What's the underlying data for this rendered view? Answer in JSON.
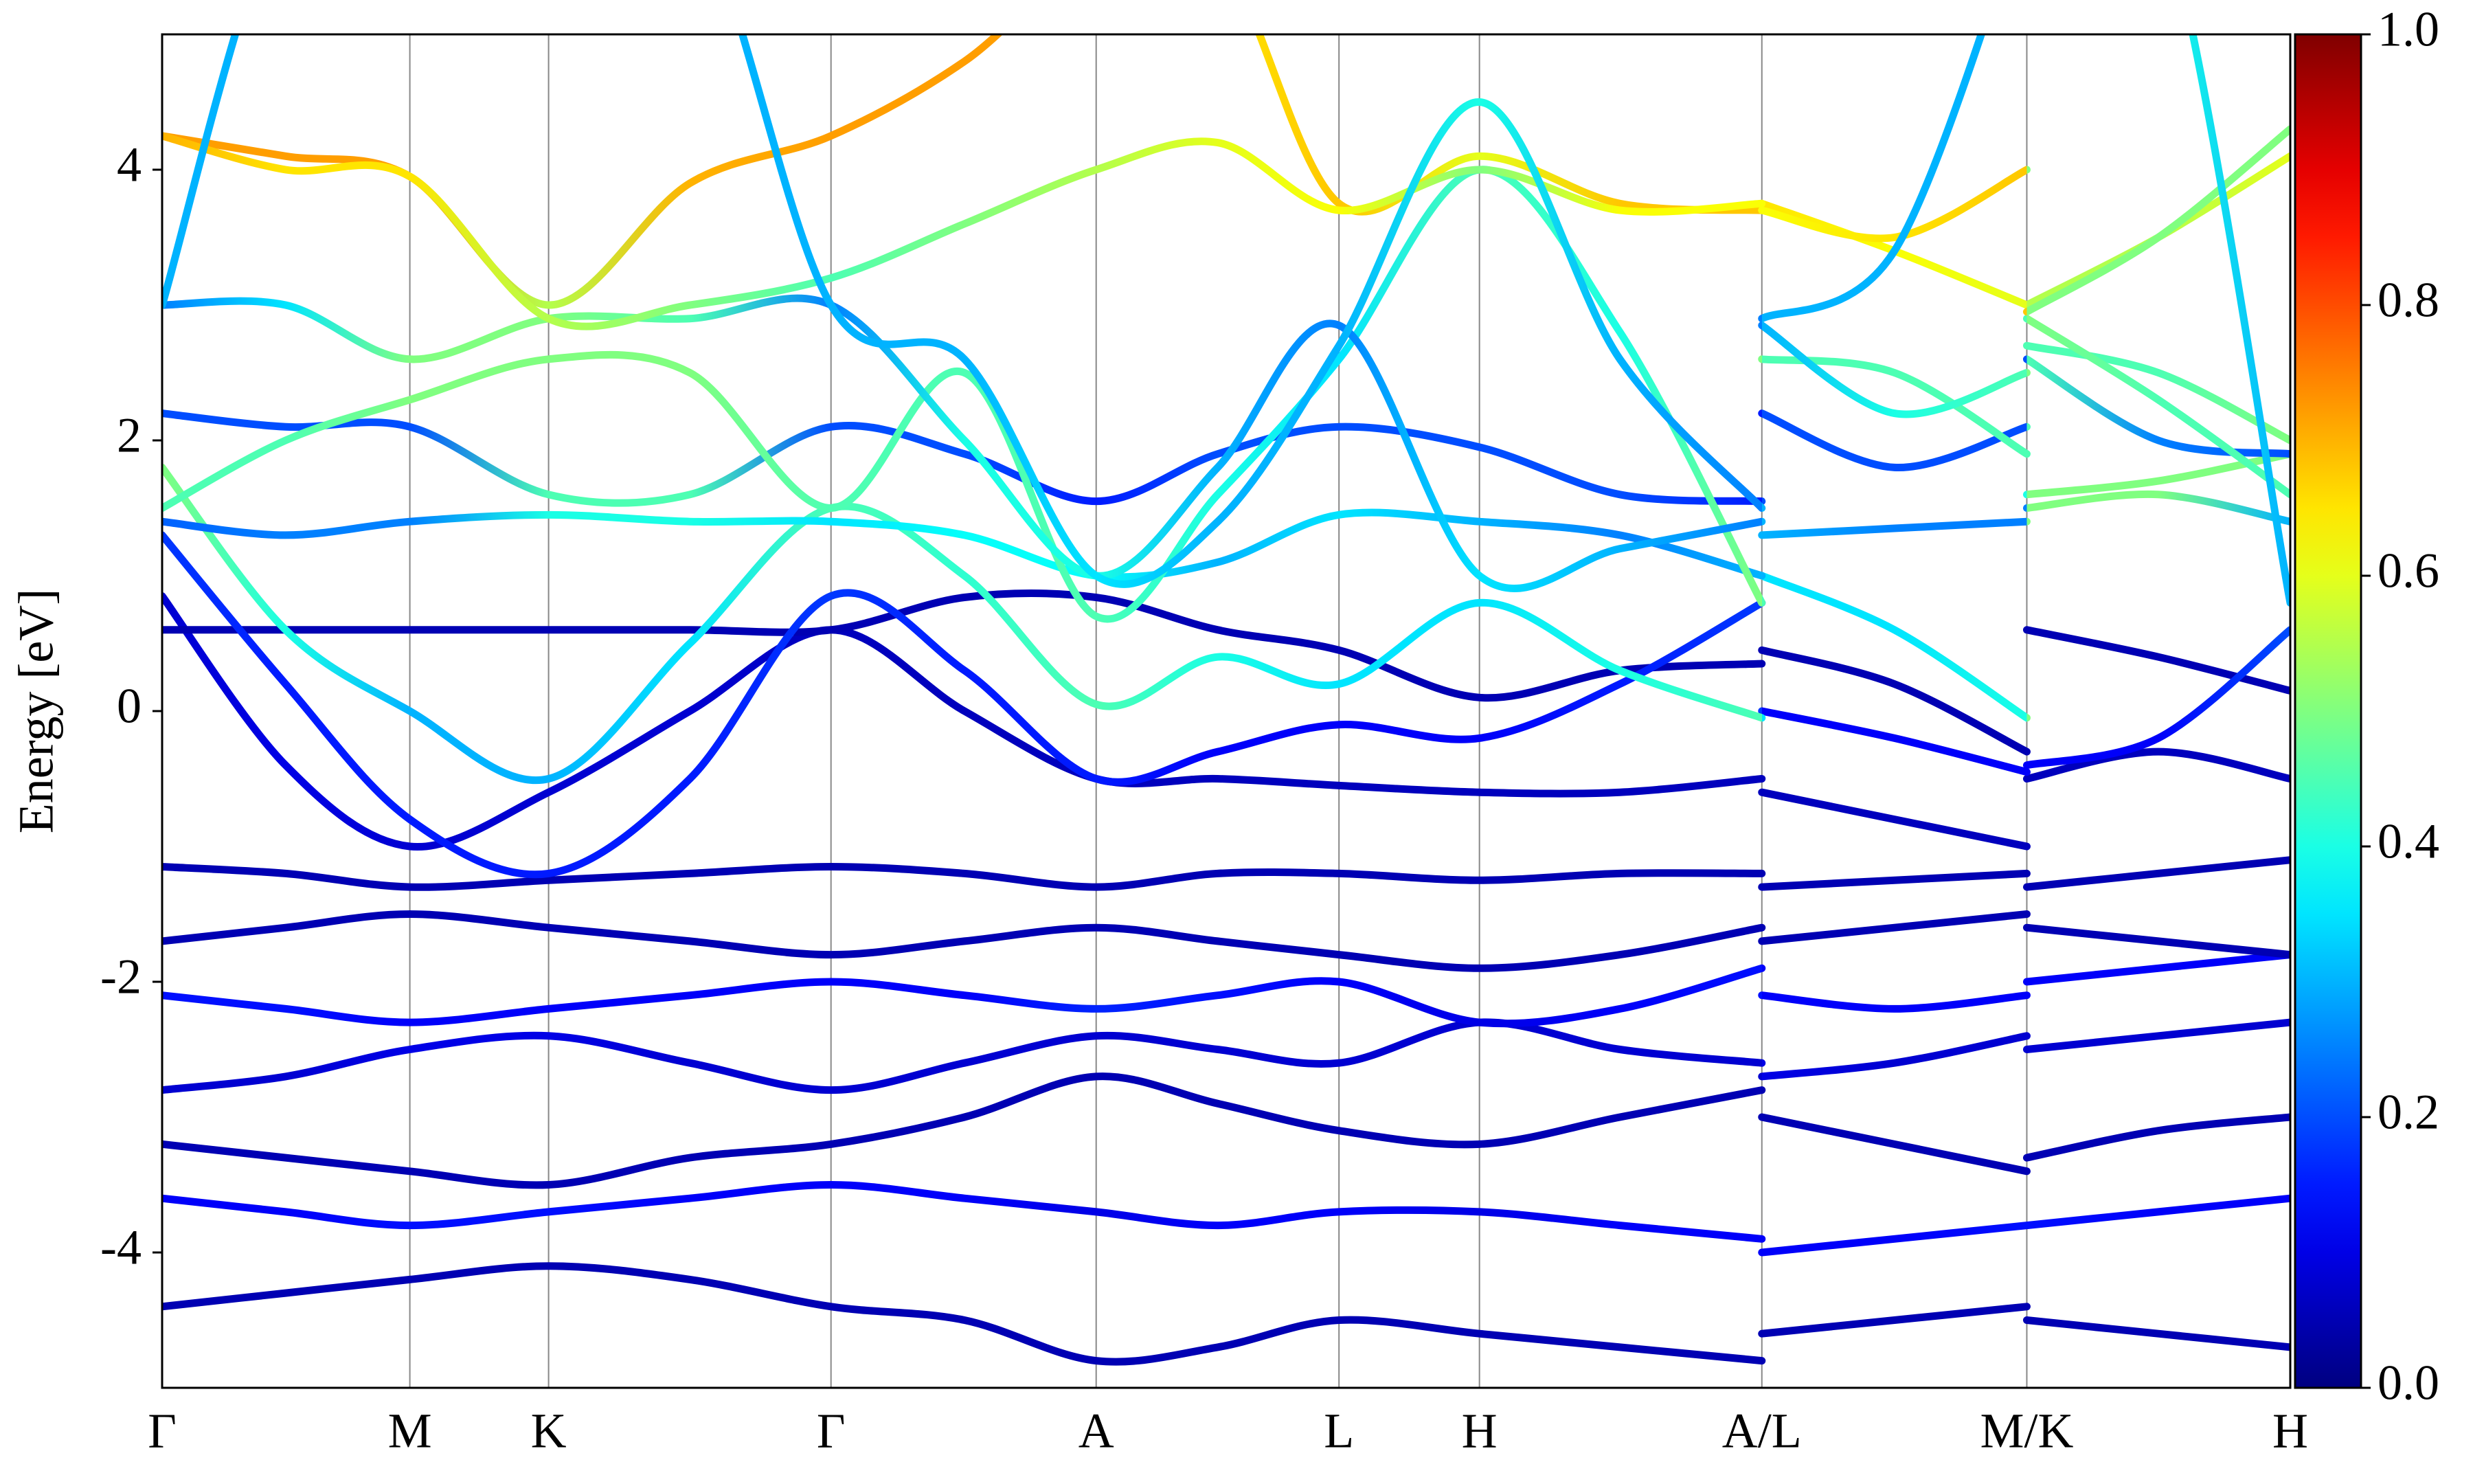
{
  "chart_data": {
    "type": "line",
    "y_label": "Energy [eV]",
    "xlim": [
      0,
      1
    ],
    "ylim": [
      -5,
      5
    ],
    "yticks": [
      -4,
      -2,
      0,
      2,
      4
    ],
    "xticks": [
      {
        "value": 0,
        "label": "Γ"
      },
      {
        "value": 0.1164,
        "label": "M"
      },
      {
        "value": 0.1816,
        "label": "K"
      },
      {
        "value": 0.3143,
        "label": "Γ"
      },
      {
        "value": 0.4389,
        "label": "A"
      },
      {
        "value": 0.553,
        "label": "L"
      },
      {
        "value": 0.619,
        "label": "H"
      },
      {
        "value": 0.7517,
        "label": "A/L"
      },
      {
        "value": 0.8762,
        "label": "M/K"
      },
      {
        "value": 1,
        "label": "H"
      }
    ],
    "grid": true,
    "colorbar": {
      "colormap": "jet",
      "lim": [
        0,
        1
      ],
      "ticks": [
        {
          "value": 0,
          "label": "0.0"
        },
        0.2,
        0.4,
        0.6,
        0.8,
        {
          "value": 1,
          "label": "1.0"
        }
      ]
    },
    "x": [
      0,
      0.058,
      0.1164,
      0.1816,
      0.248,
      0.3143,
      0.377,
      0.4389,
      0.496,
      0.553,
      0.619,
      0.685,
      0.7517,
      0.7517,
      0.7517,
      0.814,
      0.8762,
      0.8762,
      0.8762,
      0.938,
      1
    ],
    "series": [
      {
        "values": [
          -4.4,
          -4.3,
          -4.2,
          -4.1,
          -4.2,
          -4.4,
          -4.5,
          -4.8,
          -4.7,
          -4.5,
          -4.6,
          -4.7,
          -4.8,
          null,
          -4.6,
          -4.5,
          -4.4,
          null,
          -4.5,
          -4.6,
          -4.7
        ],
        "weights": [
          0.05,
          0.05,
          0.05,
          0.05,
          0.05,
          0.05,
          0.05,
          0.05,
          0.05,
          0.05,
          0.05,
          0.05,
          0.05,
          null,
          0.05,
          0.05,
          0.05,
          null,
          0.05,
          0.05,
          0.05
        ]
      },
      {
        "values": [
          -3.6,
          -3.7,
          -3.8,
          -3.7,
          -3.6,
          -3.5,
          -3.6,
          -3.7,
          -3.8,
          -3.7,
          -3.7,
          -3.8,
          -3.9,
          null,
          -4.0,
          -3.9,
          -3.8,
          null,
          -3.8,
          -3.7,
          -3.6
        ],
        "weights": [
          0.12,
          0.12,
          0.14,
          0.14,
          0.12,
          0.12,
          0.12,
          0.1,
          0.12,
          0.12,
          0.1,
          0.12,
          0.12,
          null,
          0.12,
          0.12,
          0.14,
          null,
          0.14,
          0.12,
          0.12
        ]
      },
      {
        "values": [
          -3.2,
          -3.3,
          -3.4,
          -3.5,
          -3.3,
          -3.2,
          -3.0,
          -2.7,
          -2.9,
          -3.1,
          -3.2,
          -3.0,
          -2.8,
          null,
          -3.0,
          -3.2,
          -3.4,
          null,
          -3.3,
          -3.1,
          -3.0
        ],
        "weights": [
          0.05,
          0.05,
          0.05,
          0.05,
          0.05,
          0.05,
          0.05,
          0.05,
          0.05,
          0.05,
          0.05,
          0.05,
          0.05,
          null,
          0.05,
          0.05,
          0.05,
          null,
          0.05,
          0.05,
          0.05
        ]
      },
      {
        "values": [
          -2.8,
          -2.7,
          -2.5,
          -2.4,
          -2.6,
          -2.8,
          -2.6,
          -2.4,
          -2.5,
          -2.6,
          -2.3,
          -2.5,
          -2.6,
          null,
          -2.7,
          -2.6,
          -2.4,
          null,
          -2.5,
          -2.4,
          -2.3
        ],
        "weights": [
          0.08,
          0.08,
          0.1,
          0.1,
          0.08,
          0.08,
          0.08,
          0.08,
          0.08,
          0.08,
          0.08,
          0.08,
          0.08,
          null,
          0.1,
          0.08,
          0.08,
          null,
          0.08,
          0.08,
          0.08
        ]
      },
      {
        "values": [
          -2.1,
          -2.2,
          -2.3,
          -2.2,
          -2.1,
          -2.0,
          -2.1,
          -2.2,
          -2.1,
          -2.0,
          -2.3,
          -2.2,
          -1.9,
          null,
          -2.1,
          -2.2,
          -2.1,
          null,
          -2.0,
          -1.9,
          -1.8
        ],
        "weights": [
          0.14,
          0.14,
          0.12,
          0.12,
          0.12,
          0.12,
          0.12,
          0.16,
          0.14,
          0.12,
          0.1,
          0.12,
          0.14,
          null,
          0.12,
          0.12,
          0.12,
          null,
          0.12,
          0.12,
          0.12
        ]
      },
      {
        "values": [
          -1.7,
          -1.6,
          -1.5,
          -1.6,
          -1.7,
          -1.8,
          -1.7,
          -1.6,
          -1.7,
          -1.8,
          -1.9,
          -1.8,
          -1.6,
          null,
          -1.7,
          -1.6,
          -1.5,
          null,
          -1.6,
          -1.7,
          -1.8
        ],
        "weights": [
          0.05,
          0.05,
          0.05,
          0.05,
          0.05,
          0.05,
          0.05,
          0.05,
          0.05,
          0.05,
          0.05,
          0.05,
          0.05,
          null,
          0.05,
          0.05,
          0.05,
          null,
          0.05,
          0.05,
          0.05
        ]
      },
      {
        "values": [
          -1.15,
          -1.2,
          -1.3,
          -1.25,
          -1.2,
          -1.15,
          -1.2,
          -1.3,
          -1.2,
          -1.2,
          -1.25,
          -1.2,
          -1.2,
          null,
          -1.3,
          -1.25,
          -1.2,
          null,
          -1.3,
          -1.2,
          -1.1
        ],
        "weights": [
          0.05,
          0.05,
          0.05,
          0.05,
          0.05,
          0.05,
          0.05,
          0.05,
          0.05,
          0.05,
          0.05,
          0.05,
          0.05,
          null,
          0.05,
          0.05,
          0.05,
          null,
          0.05,
          0.05,
          0.05
        ]
      },
      {
        "values": [
          0.85,
          -0.4,
          -1.0,
          -0.6,
          0.0,
          0.6,
          0.0,
          -0.5,
          -0.5,
          -0.55,
          -0.6,
          -0.6,
          -0.5,
          null,
          -0.6,
          -0.8,
          -1.0,
          null,
          -0.5,
          -0.3,
          -0.5
        ],
        "weights": [
          0.08,
          0.1,
          0.08,
          0.08,
          0.08,
          0.06,
          0.06,
          0.06,
          0.06,
          0.06,
          0.06,
          0.06,
          0.06,
          null,
          0.06,
          0.06,
          0.06,
          null,
          0.06,
          0.06,
          0.06
        ]
      },
      {
        "values": [
          0.6,
          0.6,
          0.6,
          0.6,
          0.6,
          0.6,
          0.84,
          0.84,
          0.6,
          0.45,
          0.1,
          0.3,
          0.35,
          null,
          0.45,
          0.2,
          -0.3,
          null,
          0.6,
          0.4,
          0.15
        ],
        "weights": [
          0.05,
          0.05,
          0.05,
          0.05,
          0.05,
          0.05,
          0.05,
          0.05,
          0.05,
          0.05,
          0.05,
          0.05,
          0.05,
          null,
          0.05,
          0.05,
          0.05,
          null,
          0.05,
          0.05,
          0.05
        ]
      },
      {
        "values": [
          1.3,
          0.2,
          -0.8,
          -1.2,
          -0.5,
          0.85,
          0.3,
          -0.5,
          -0.3,
          -0.1,
          -0.2,
          0.2,
          0.8,
          null,
          0.0,
          -0.2,
          -0.45,
          null,
          -0.4,
          -0.2,
          0.6
        ],
        "weights": [
          0.18,
          0.15,
          0.15,
          0.15,
          0.15,
          0.18,
          0.15,
          0.15,
          0.12,
          0.12,
          0.12,
          0.15,
          0.18,
          null,
          0.12,
          0.12,
          0.12,
          null,
          0.12,
          0.12,
          0.2
        ]
      },
      {
        "values": [
          1.8,
          0.6,
          0.0,
          -0.5,
          0.5,
          1.5,
          1.0,
          0.05,
          0.4,
          0.2,
          0.8,
          0.3,
          -0.05,
          null,
          1.0,
          0.6,
          -0.05,
          null,
          1.6,
          1.7,
          1.9
        ],
        "weights": [
          0.5,
          0.4,
          0.3,
          0.3,
          0.35,
          0.45,
          0.42,
          0.45,
          0.4,
          0.35,
          0.35,
          0.4,
          0.45,
          null,
          0.35,
          0.35,
          0.4,
          null,
          0.5,
          0.5,
          0.5
        ]
      },
      {
        "values": [
          1.4,
          1.3,
          1.4,
          1.45,
          1.4,
          1.4,
          1.3,
          1.0,
          1.1,
          1.45,
          1.4,
          1.3,
          1.0,
          null,
          1.3,
          1.35,
          1.4,
          null,
          1.5,
          1.6,
          1.4
        ],
        "weights": [
          0.22,
          0.25,
          0.25,
          0.4,
          0.4,
          0.35,
          0.38,
          0.38,
          0.3,
          0.35,
          0.3,
          0.25,
          0.3,
          null,
          0.3,
          0.25,
          0.25,
          null,
          0.5,
          0.5,
          0.3
        ]
      },
      {
        "values": [
          2.2,
          2.1,
          2.1,
          1.6,
          1.6,
          2.1,
          1.9,
          1.55,
          1.9,
          2.1,
          1.95,
          1.6,
          1.55,
          null,
          2.2,
          1.8,
          2.1,
          null,
          2.6,
          2.0,
          1.9
        ],
        "weights": [
          0.2,
          0.2,
          0.2,
          0.45,
          0.45,
          0.2,
          0.2,
          0.15,
          0.2,
          0.2,
          0.2,
          0.2,
          0.15,
          null,
          0.2,
          0.2,
          0.2,
          null,
          0.45,
          0.25,
          0.2
        ]
      },
      {
        "values": [
          1.5,
          2.0,
          2.3,
          2.6,
          2.5,
          1.5,
          2.5,
          0.7,
          1.6,
          2.6,
          4.0,
          2.8,
          0.8,
          null,
          2.6,
          2.5,
          1.9,
          null,
          2.7,
          2.5,
          2.0
        ],
        "weights": [
          0.45,
          0.45,
          0.5,
          0.5,
          0.5,
          0.45,
          0.45,
          0.45,
          0.4,
          0.35,
          0.45,
          0.4,
          0.5,
          null,
          0.45,
          0.45,
          0.45,
          null,
          0.45,
          0.45,
          0.5
        ]
      },
      {
        "values": [
          3.0,
          3.0,
          2.6,
          2.9,
          2.9,
          3.0,
          2.0,
          1.0,
          1.8,
          2.85,
          1.0,
          1.2,
          1.4,
          null,
          2.85,
          2.2,
          2.5,
          null,
          2.9,
          2.3,
          1.6
        ],
        "weights": [
          0.25,
          0.35,
          0.5,
          0.5,
          0.45,
          0.25,
          0.4,
          0.4,
          0.3,
          0.25,
          0.35,
          0.3,
          0.25,
          null,
          0.3,
          0.4,
          0.45,
          null,
          0.5,
          0.45,
          0.45
        ]
      },
      {
        "values": [
          4.25,
          4.1,
          3.95,
          3.0,
          3.9,
          4.25,
          4.8,
          5.6,
          5.6,
          3.75,
          4.1,
          3.75,
          3.7,
          null,
          3.75,
          3.4,
          3.0,
          null,
          3.0,
          3.5,
          4.1
        ],
        "weights": [
          0.72,
          0.72,
          0.72,
          0.55,
          0.7,
          0.72,
          0.72,
          0.72,
          0.65,
          0.68,
          0.6,
          0.68,
          0.68,
          null,
          0.65,
          0.62,
          0.6,
          null,
          0.55,
          0.55,
          0.6
        ]
      },
      {
        "values": [
          4.25,
          4.0,
          3.95,
          2.9,
          3.0,
          3.2,
          3.6,
          4.0,
          4.2,
          3.7,
          4.0,
          3.7,
          3.75,
          null,
          3.7,
          3.5,
          4.0,
          null,
          2.95,
          3.5,
          4.3
        ],
        "weights": [
          0.7,
          0.65,
          0.65,
          0.55,
          0.5,
          0.45,
          0.5,
          0.55,
          0.6,
          0.62,
          0.5,
          0.62,
          0.62,
          null,
          0.62,
          0.65,
          0.68,
          null,
          0.5,
          0.5,
          0.5
        ]
      },
      {
        "values": [
          3.0,
          6.0,
          6.0,
          6.0,
          6.0,
          3.0,
          2.6,
          1.0,
          1.4,
          2.7,
          4.5,
          2.6,
          1.5,
          null,
          2.9,
          3.4,
          6.0,
          null,
          6.0,
          6.0,
          0.8
        ],
        "weights": [
          0.3,
          0.3,
          0.3,
          0.3,
          0.3,
          0.3,
          0.3,
          0.35,
          0.3,
          0.3,
          0.4,
          0.3,
          0.25,
          null,
          0.3,
          0.3,
          0.3,
          null,
          0.4,
          0.4,
          0.3
        ]
      }
    ]
  }
}
